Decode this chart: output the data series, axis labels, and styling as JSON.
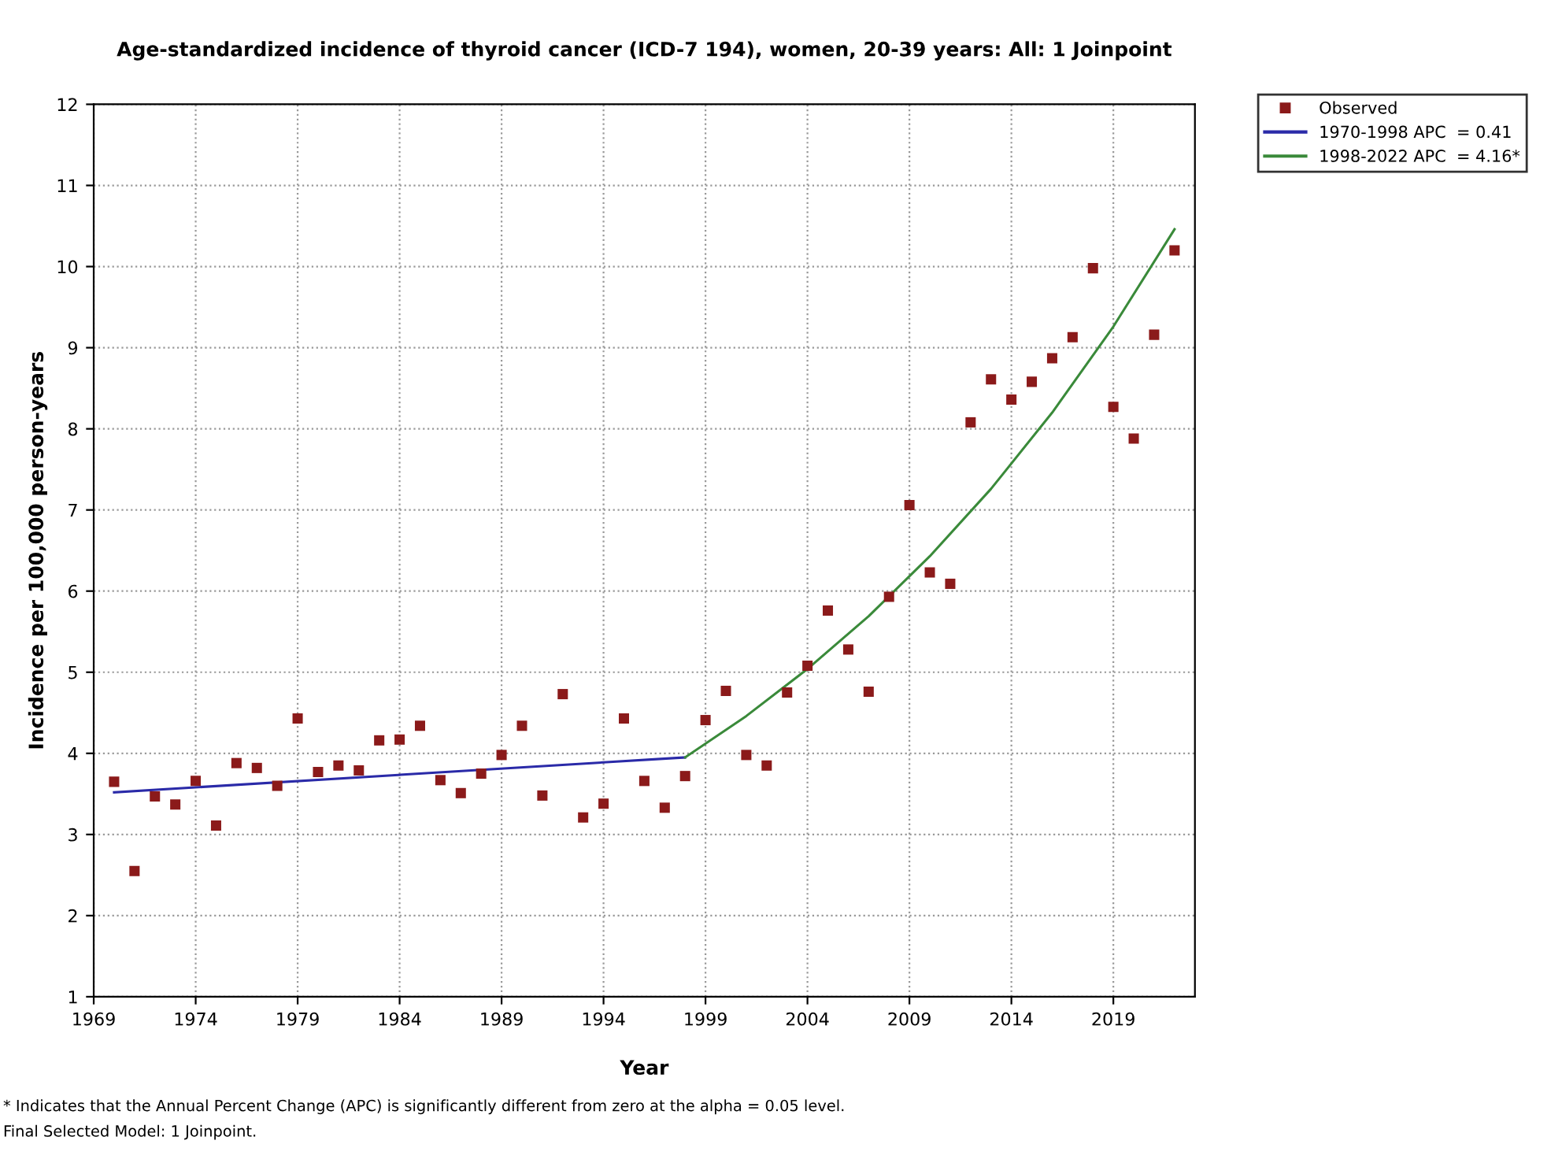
{
  "chart_data": {
    "type": "scatter",
    "title": "Age-standardized incidence of thyroid cancer (ICD-7 194), women, 20-39 years: All: 1 Joinpoint",
    "xlabel": "Year",
    "ylabel": "Incidence per 100,000 person-years",
    "xlim": [
      1969,
      2023
    ],
    "xticks": [
      1969,
      1974,
      1979,
      1984,
      1989,
      1994,
      1999,
      2004,
      2009,
      2014,
      2019
    ],
    "ylim": [
      1,
      12
    ],
    "yticks": [
      1,
      2,
      3,
      4,
      5,
      6,
      7,
      8,
      9,
      10,
      11,
      12
    ],
    "grid": true,
    "legend": "top right",
    "series": [
      {
        "name": "Observed",
        "marker": "square",
        "color": "#8b1a1a",
        "x": [
          1970,
          1971,
          1972,
          1973,
          1974,
          1975,
          1976,
          1977,
          1978,
          1979,
          1980,
          1981,
          1982,
          1983,
          1984,
          1985,
          1986,
          1987,
          1988,
          1989,
          1990,
          1991,
          1992,
          1993,
          1994,
          1995,
          1996,
          1997,
          1998,
          1999,
          2000,
          2001,
          2002,
          2003,
          2004,
          2005,
          2006,
          2007,
          2008,
          2009,
          2010,
          2011,
          2012,
          2013,
          2014,
          2015,
          2016,
          2017,
          2018,
          2019,
          2020,
          2021,
          2022
        ],
        "values": [
          3.65,
          2.55,
          3.47,
          3.37,
          3.66,
          3.11,
          3.88,
          3.82,
          3.6,
          4.43,
          3.77,
          3.85,
          3.79,
          4.16,
          4.17,
          4.34,
          3.67,
          3.51,
          3.75,
          3.98,
          4.34,
          3.48,
          4.73,
          3.21,
          3.38,
          4.43,
          3.66,
          3.33,
          3.72,
          4.41,
          4.77,
          3.98,
          3.85,
          4.75,
          5.08,
          5.76,
          5.28,
          4.76,
          5.93,
          7.06,
          6.23,
          6.09,
          8.08,
          8.61,
          8.36,
          8.58,
          8.87,
          9.13,
          9.98,
          8.27,
          7.88,
          9.16,
          10.2
        ]
      },
      {
        "name": "1970-1998 APC  = 0.41",
        "type": "line",
        "marker": "none",
        "line_style": "solid",
        "color": "#2a2aa8",
        "x": [
          1970,
          1998
        ],
        "values": [
          3.52,
          3.95
        ]
      },
      {
        "name": "1998-2022 APC  = 4.16*",
        "type": "line",
        "marker": "none",
        "line_style": "solid",
        "color": "#3a8a3a",
        "x": [
          1998,
          2001,
          2004,
          2007,
          2010,
          2013,
          2016,
          2019,
          2022
        ],
        "values": [
          3.95,
          4.46,
          5.04,
          5.69,
          6.43,
          7.26,
          8.2,
          9.26,
          10.46
        ]
      }
    ],
    "annotations": [
      "* Indicates that the Annual Percent Change (APC) is significantly different from zero at the alpha = 0.05 level.",
      "Final Selected Model: 1 Joinpoint."
    ]
  }
}
